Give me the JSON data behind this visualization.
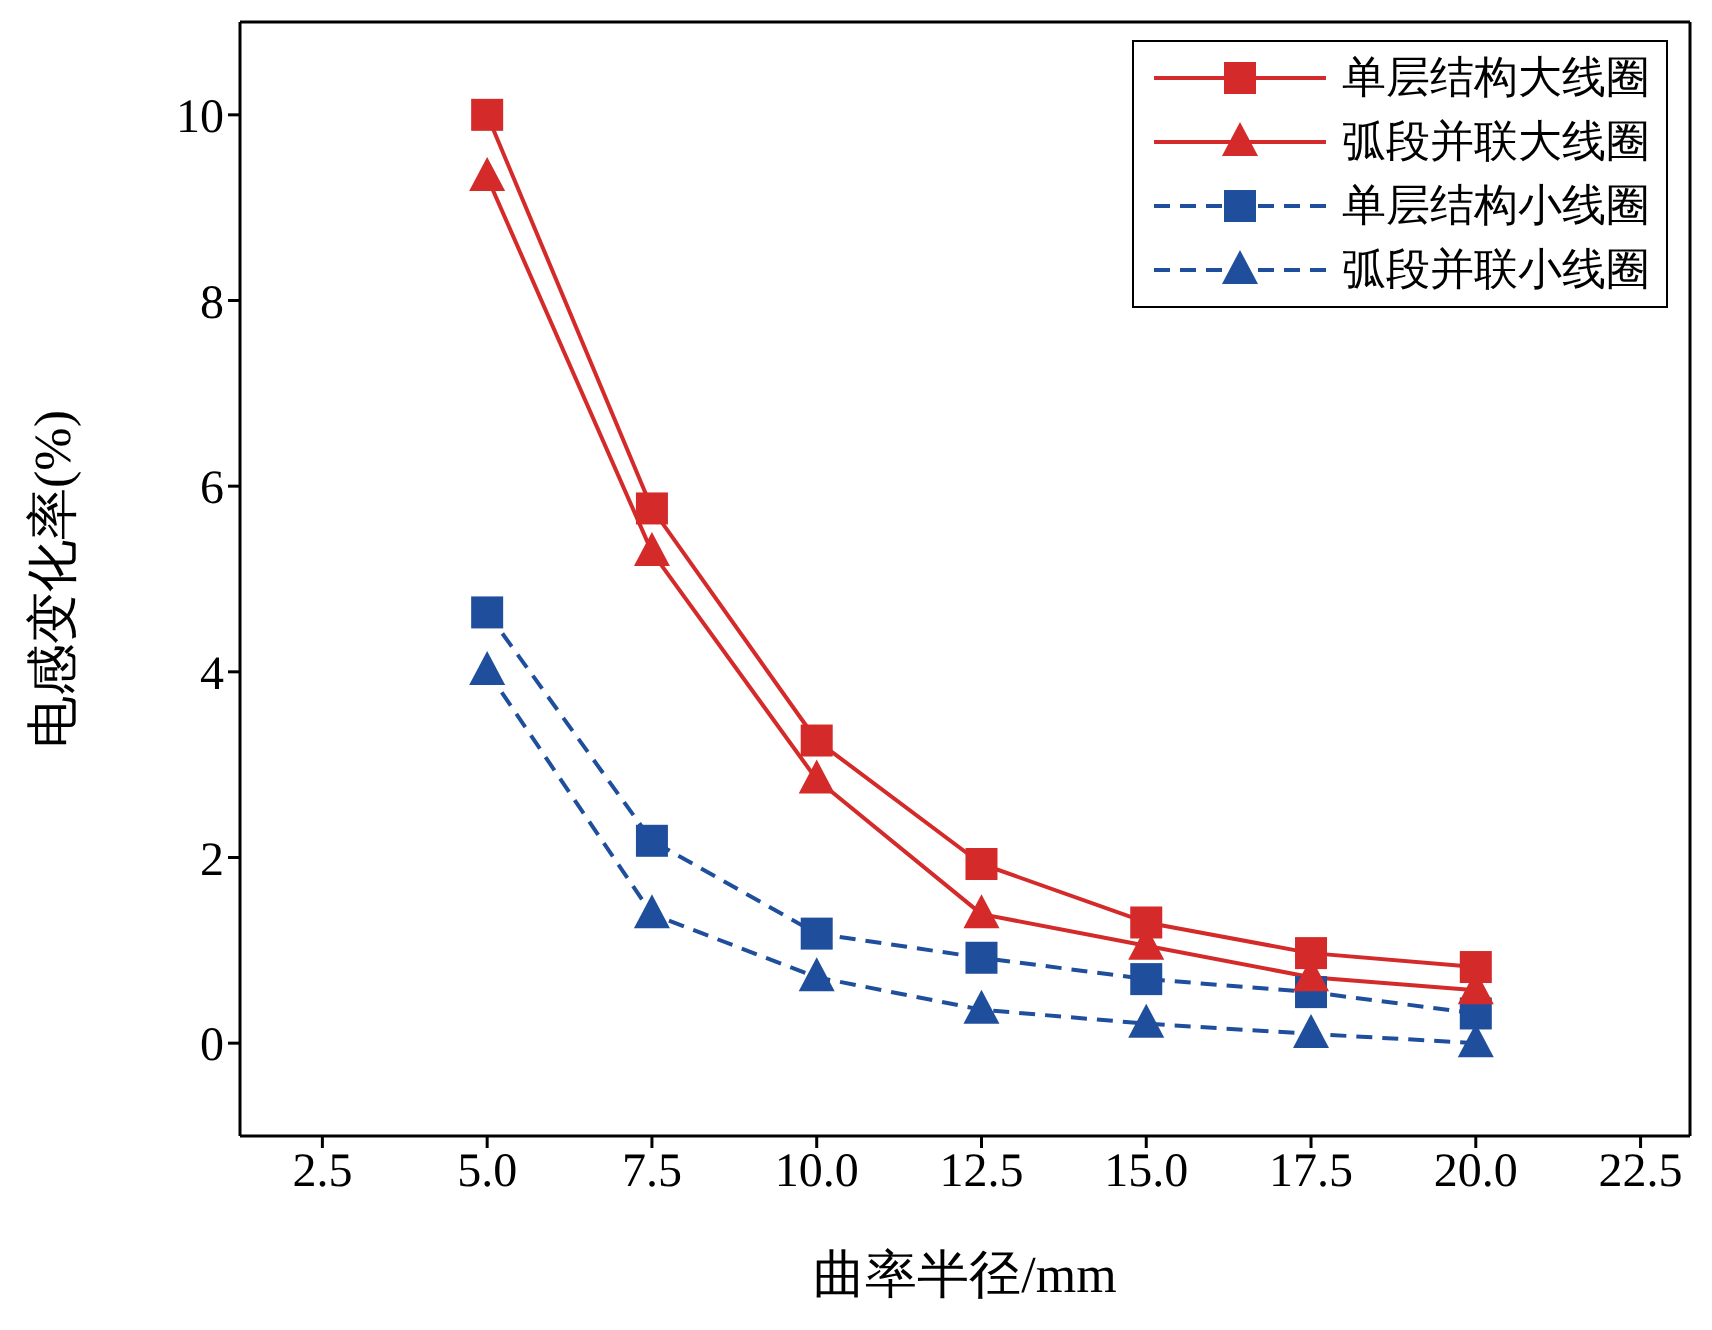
{
  "chart_data": {
    "type": "line",
    "xlabel": "曲率半径/mm",
    "ylabel": "电感变化率(%)",
    "xlim": [
      1.25,
      23.25
    ],
    "ylim": [
      -1,
      11
    ],
    "xticks": [
      2.5,
      {
        "value": 5,
        "label": "5.0"
      },
      {
        "value": 7.5,
        "label": "7.5"
      },
      {
        "value": 10,
        "label": "10.0"
      },
      {
        "value": 12.5,
        "label": "12.5"
      },
      {
        "value": 15,
        "label": "15.0"
      },
      {
        "value": 17.5,
        "label": "17.5"
      },
      {
        "value": 20,
        "label": "20.0"
      },
      {
        "value": 22.5,
        "label": "22.5"
      }
    ],
    "yticks": [
      0,
      2,
      4,
      6,
      8,
      10
    ],
    "x": [
      5,
      7.5,
      10,
      12.5,
      15,
      17.5,
      20
    ],
    "legend": "top right",
    "grid": false,
    "series": [
      {
        "name": "单层结构大线圈",
        "color": "#d42a2a",
        "marker": "square",
        "line_style": "solid",
        "values": [
          10.0,
          5.76,
          3.26,
          1.93,
          1.3,
          0.97,
          0.82
        ]
      },
      {
        "name": "弧段并联大线圈",
        "color": "#d42a2a",
        "marker": "triangle",
        "line_style": "solid",
        "values": [
          9.33,
          5.29,
          2.84,
          1.39,
          1.05,
          0.71,
          0.57
        ]
      },
      {
        "name": "单层结构小线圈",
        "color": "#1f4f9c",
        "marker": "square",
        "line_style": "dashed",
        "values": [
          4.64,
          2.18,
          1.18,
          0.92,
          0.69,
          0.55,
          0.32
        ]
      },
      {
        "name": "弧段并联小线圈",
        "color": "#1f4f9c",
        "marker": "triangle",
        "line_style": "dashed",
        "values": [
          4.01,
          1.39,
          0.71,
          0.36,
          0.21,
          0.1,
          0.0
        ]
      }
    ]
  }
}
